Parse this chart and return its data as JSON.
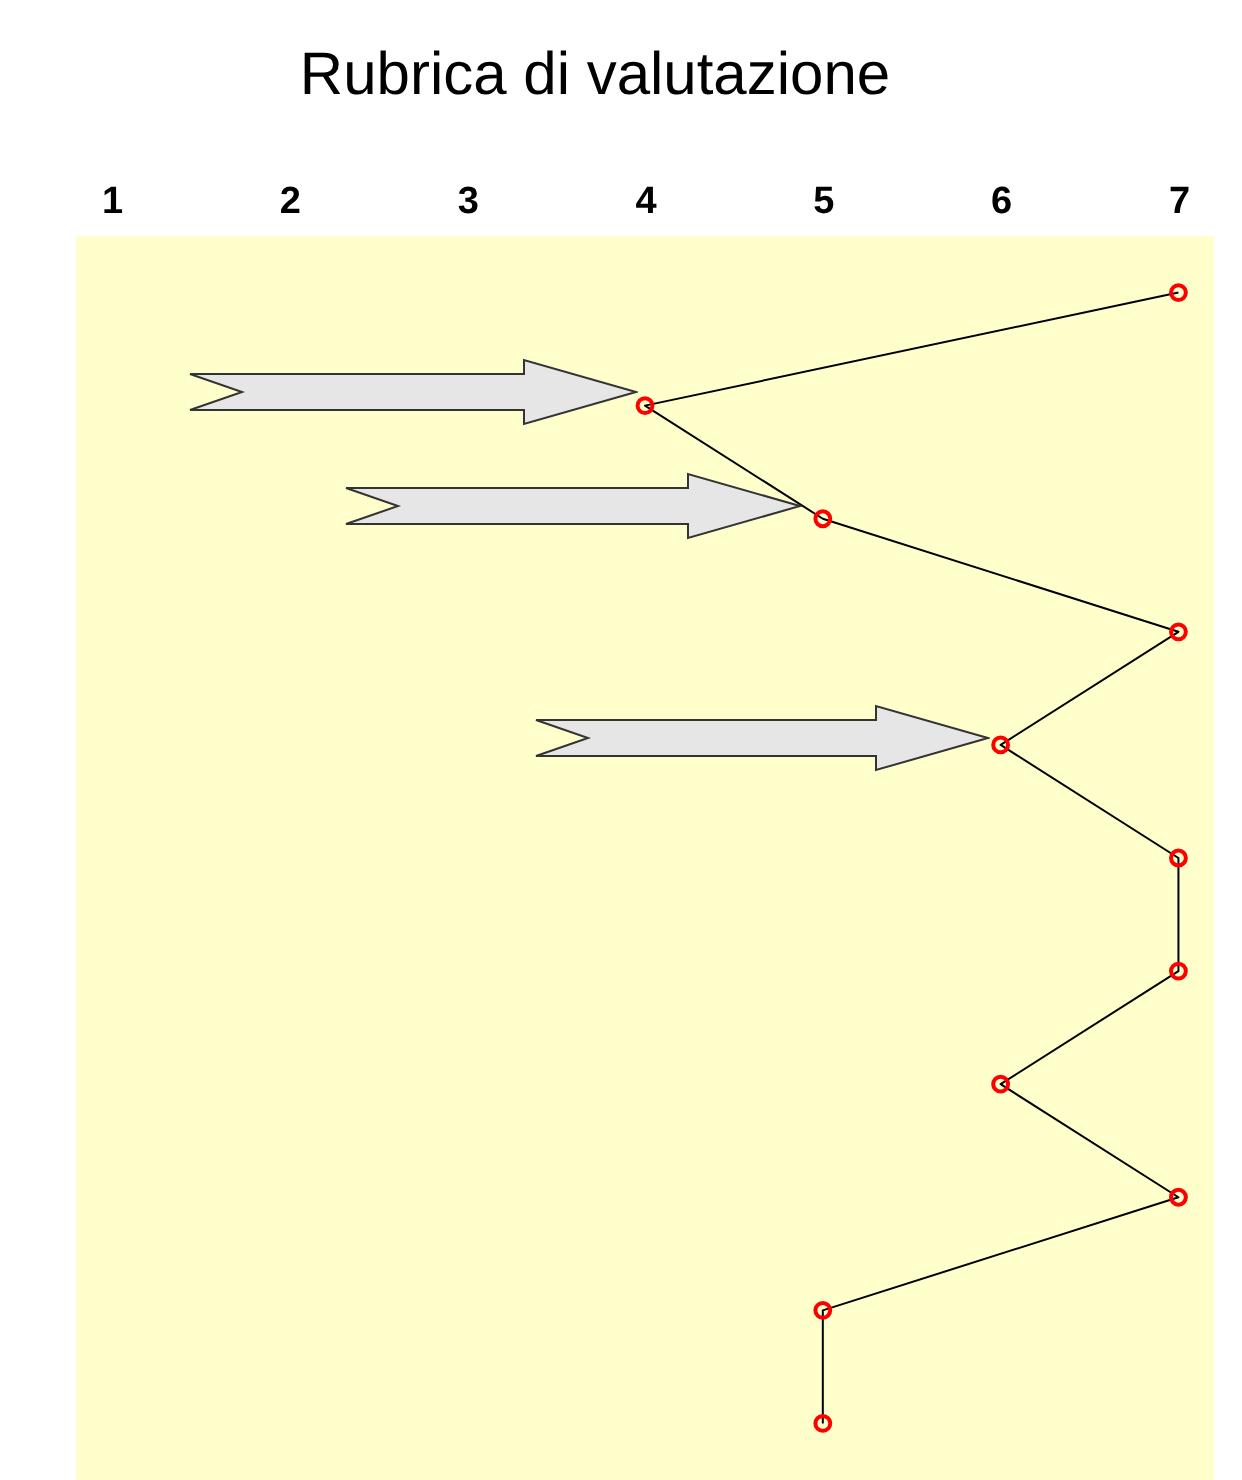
{
  "chart_data": {
    "type": "line",
    "title": "Rubrica di valutazione",
    "orientation": "horizontal",
    "categories": [
      null,
      null,
      null,
      null,
      null,
      null,
      null,
      null,
      null,
      null,
      null
    ],
    "values": [
      7,
      4,
      5,
      7,
      6,
      7,
      7,
      6,
      7,
      5,
      5
    ],
    "color": "#000000",
    "marker": "circle",
    "xlim": [
      0.8,
      7.2
    ],
    "xticks": [
      1,
      2,
      3,
      4,
      5,
      6,
      7
    ]
  }
}
